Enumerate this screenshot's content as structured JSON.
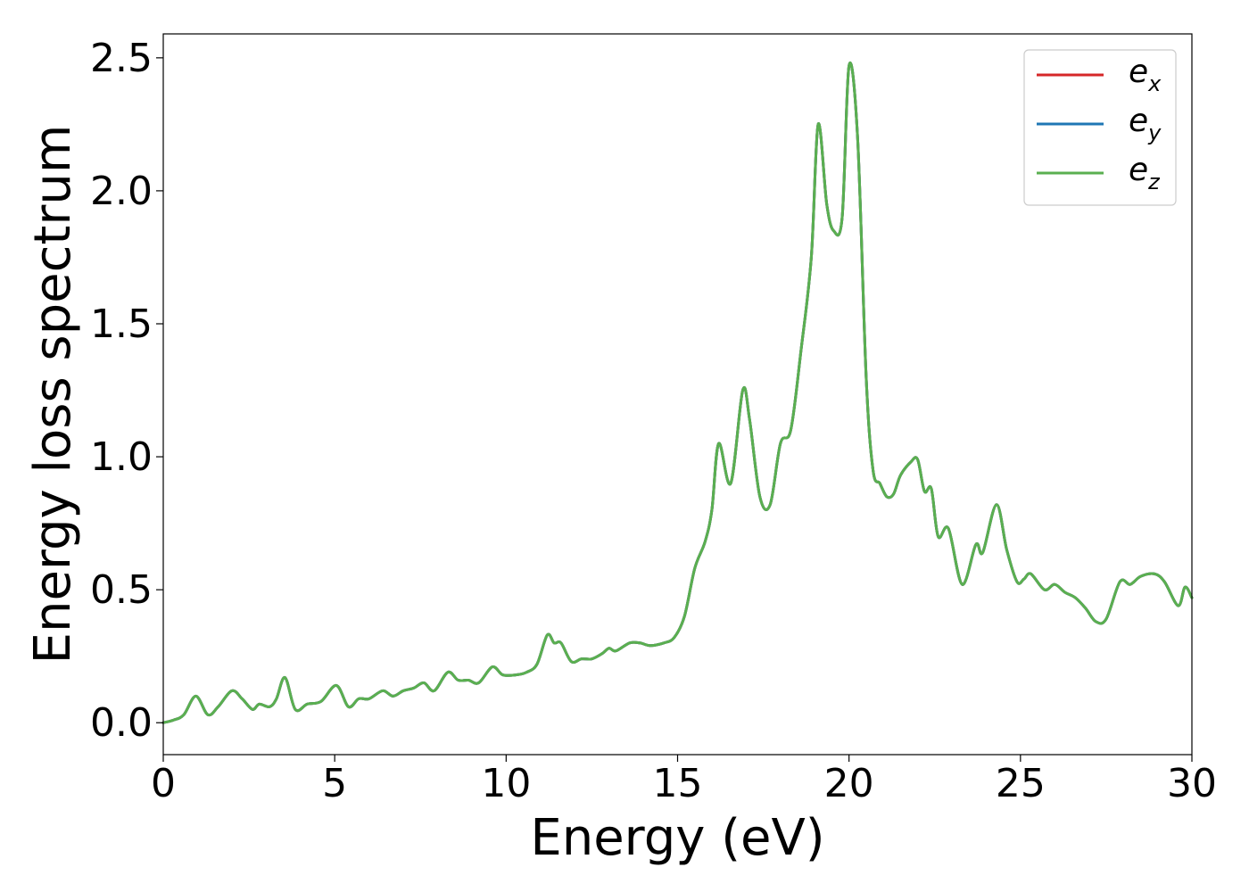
{
  "chart_data": {
    "type": "line",
    "title": "",
    "xlabel": "Energy (eV)",
    "ylabel": "Energy loss spectrum",
    "xlim": [
      0,
      30
    ],
    "ylim": [
      -0.12,
      2.59
    ],
    "xticks": [
      0,
      5,
      10,
      15,
      20,
      25,
      30
    ],
    "xtick_labels": [
      "0",
      "5",
      "10",
      "15",
      "20",
      "25",
      "30"
    ],
    "yticks": [
      0.0,
      0.5,
      1.0,
      1.5,
      2.0,
      2.5
    ],
    "ytick_labels": [
      "0.0",
      "0.5",
      "1.0",
      "1.5",
      "2.0",
      "2.5"
    ],
    "grid": false,
    "legend_position": "top-right",
    "x": [
      0,
      0.3,
      0.6,
      0.95,
      1.3,
      1.6,
      2.0,
      2.3,
      2.6,
      2.8,
      3.1,
      3.3,
      3.55,
      3.85,
      4.2,
      4.6,
      5.05,
      5.4,
      5.7,
      6.0,
      6.4,
      6.7,
      7.0,
      7.3,
      7.6,
      7.9,
      8.3,
      8.6,
      8.9,
      9.2,
      9.6,
      9.9,
      10.3,
      10.6,
      10.9,
      11.2,
      11.4,
      11.6,
      11.9,
      12.2,
      12.5,
      12.8,
      13.0,
      13.2,
      13.6,
      13.9,
      14.2,
      14.6,
      14.9,
      15.2,
      15.5,
      15.8,
      16.0,
      16.2,
      16.55,
      16.9,
      17.1,
      17.4,
      17.7,
      18.0,
      18.3,
      18.6,
      18.9,
      19.1,
      19.35,
      19.55,
      19.8,
      20.0,
      20.25,
      20.5,
      20.7,
      20.9,
      21.1,
      21.3,
      21.5,
      21.8,
      22.0,
      22.2,
      22.4,
      22.6,
      22.9,
      23.3,
      23.7,
      23.9,
      24.3,
      24.6,
      24.9,
      25.1,
      25.3,
      25.7,
      26.0,
      26.3,
      26.6,
      26.9,
      27.2,
      27.5,
      27.9,
      28.2,
      28.5,
      28.9,
      29.2,
      29.6,
      29.8,
      30.0
    ],
    "series": [
      {
        "name": "e_x",
        "color": "#d62728",
        "values": [
          0.0,
          0.01,
          0.03,
          0.1,
          0.03,
          0.06,
          0.12,
          0.09,
          0.05,
          0.07,
          0.06,
          0.09,
          0.17,
          0.05,
          0.07,
          0.08,
          0.14,
          0.06,
          0.09,
          0.09,
          0.12,
          0.1,
          0.12,
          0.13,
          0.15,
          0.12,
          0.19,
          0.16,
          0.16,
          0.15,
          0.21,
          0.18,
          0.18,
          0.19,
          0.22,
          0.33,
          0.3,
          0.3,
          0.23,
          0.24,
          0.24,
          0.26,
          0.28,
          0.27,
          0.3,
          0.3,
          0.29,
          0.3,
          0.32,
          0.4,
          0.58,
          0.68,
          0.8,
          1.05,
          0.9,
          1.25,
          1.14,
          0.85,
          0.82,
          1.05,
          1.1,
          1.4,
          1.75,
          2.25,
          1.95,
          1.85,
          1.9,
          2.47,
          2.2,
          1.3,
          0.95,
          0.9,
          0.85,
          0.86,
          0.93,
          0.98,
          0.99,
          0.87,
          0.88,
          0.7,
          0.73,
          0.52,
          0.67,
          0.64,
          0.82,
          0.65,
          0.53,
          0.54,
          0.56,
          0.5,
          0.52,
          0.49,
          0.47,
          0.43,
          0.38,
          0.39,
          0.53,
          0.52,
          0.55,
          0.56,
          0.53,
          0.44,
          0.51,
          0.47
        ]
      },
      {
        "name": "e_y",
        "color": "#1f77b4",
        "values": [
          0.0,
          0.01,
          0.03,
          0.1,
          0.03,
          0.06,
          0.12,
          0.09,
          0.05,
          0.07,
          0.06,
          0.09,
          0.17,
          0.05,
          0.07,
          0.08,
          0.14,
          0.06,
          0.09,
          0.09,
          0.12,
          0.1,
          0.12,
          0.13,
          0.15,
          0.12,
          0.19,
          0.16,
          0.16,
          0.15,
          0.21,
          0.18,
          0.18,
          0.19,
          0.22,
          0.33,
          0.3,
          0.3,
          0.23,
          0.24,
          0.24,
          0.26,
          0.28,
          0.27,
          0.3,
          0.3,
          0.29,
          0.3,
          0.32,
          0.4,
          0.58,
          0.68,
          0.8,
          1.05,
          0.9,
          1.25,
          1.14,
          0.85,
          0.82,
          1.05,
          1.1,
          1.4,
          1.75,
          2.25,
          1.95,
          1.85,
          1.9,
          2.47,
          2.2,
          1.3,
          0.95,
          0.9,
          0.85,
          0.86,
          0.93,
          0.98,
          0.99,
          0.87,
          0.88,
          0.7,
          0.73,
          0.52,
          0.67,
          0.64,
          0.82,
          0.65,
          0.53,
          0.54,
          0.56,
          0.5,
          0.52,
          0.49,
          0.47,
          0.43,
          0.38,
          0.39,
          0.53,
          0.52,
          0.55,
          0.56,
          0.53,
          0.44,
          0.51,
          0.47
        ]
      },
      {
        "name": "e_z",
        "color": "#5aaf50",
        "values": [
          0.0,
          0.01,
          0.03,
          0.1,
          0.03,
          0.06,
          0.12,
          0.09,
          0.05,
          0.07,
          0.06,
          0.09,
          0.17,
          0.05,
          0.07,
          0.08,
          0.14,
          0.06,
          0.09,
          0.09,
          0.12,
          0.1,
          0.12,
          0.13,
          0.15,
          0.12,
          0.19,
          0.16,
          0.16,
          0.15,
          0.21,
          0.18,
          0.18,
          0.19,
          0.22,
          0.33,
          0.3,
          0.3,
          0.23,
          0.24,
          0.24,
          0.26,
          0.28,
          0.27,
          0.3,
          0.3,
          0.29,
          0.3,
          0.32,
          0.4,
          0.58,
          0.68,
          0.8,
          1.05,
          0.9,
          1.25,
          1.14,
          0.85,
          0.82,
          1.05,
          1.1,
          1.4,
          1.75,
          2.25,
          1.95,
          1.85,
          1.9,
          2.47,
          2.2,
          1.3,
          0.95,
          0.9,
          0.85,
          0.86,
          0.93,
          0.98,
          0.99,
          0.87,
          0.88,
          0.7,
          0.73,
          0.52,
          0.67,
          0.64,
          0.82,
          0.65,
          0.53,
          0.54,
          0.56,
          0.5,
          0.52,
          0.49,
          0.47,
          0.43,
          0.38,
          0.39,
          0.53,
          0.52,
          0.55,
          0.56,
          0.53,
          0.44,
          0.51,
          0.47
        ]
      }
    ],
    "legend": [
      {
        "base": "e",
        "sub": "x",
        "color": "#d62728"
      },
      {
        "base": "e",
        "sub": "y",
        "color": "#1f77b4"
      },
      {
        "base": "e",
        "sub": "z",
        "color": "#5aaf50"
      }
    ]
  }
}
